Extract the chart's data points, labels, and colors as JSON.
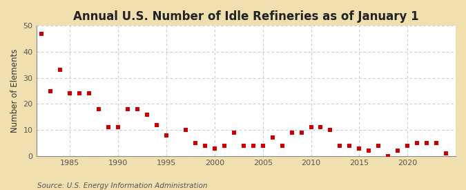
{
  "title": "Annual U.S. Number of Idle Refineries as of January 1",
  "ylabel": "Number of Elements",
  "source": "Source: U.S. Energy Information Administration",
  "figure_bg": "#f0e0b0",
  "plot_bg": "#ffffff",
  "marker_color": "#cc0000",
  "marker_size": 16,
  "marker_style": "s",
  "grid_color": "#bbbbbb",
  "grid_linestyle": "--",
  "ylim": [
    0,
    50
  ],
  "yticks": [
    0,
    10,
    20,
    30,
    40,
    50
  ],
  "xlim": [
    1981.5,
    2025
  ],
  "xticks": [
    1985,
    1990,
    1995,
    2000,
    2005,
    2010,
    2015,
    2020
  ],
  "years": [
    1982,
    1983,
    1984,
    1985,
    1986,
    1987,
    1988,
    1989,
    1990,
    1991,
    1992,
    1993,
    1994,
    1995,
    1997,
    1998,
    1999,
    2000,
    2001,
    2002,
    2003,
    2004,
    2005,
    2006,
    2007,
    2008,
    2009,
    2010,
    2011,
    2012,
    2013,
    2014,
    2015,
    2016,
    2017,
    2018,
    2019,
    2020,
    2021,
    2022,
    2023,
    2024
  ],
  "values": [
    47,
    25,
    33,
    24,
    24,
    24,
    18,
    11,
    11,
    18,
    18,
    16,
    12,
    8,
    10,
    5,
    4,
    3,
    4,
    9,
    4,
    4,
    4,
    7,
    4,
    9,
    9,
    11,
    11,
    10,
    4,
    4,
    3,
    2,
    4,
    0,
    2,
    4,
    5,
    5,
    5,
    1
  ],
  "title_fontsize": 12,
  "title_fontweight": "bold",
  "label_fontsize": 8.5,
  "tick_fontsize": 8,
  "source_fontsize": 7.5,
  "spine_color": "#888888",
  "tick_color": "#555555"
}
